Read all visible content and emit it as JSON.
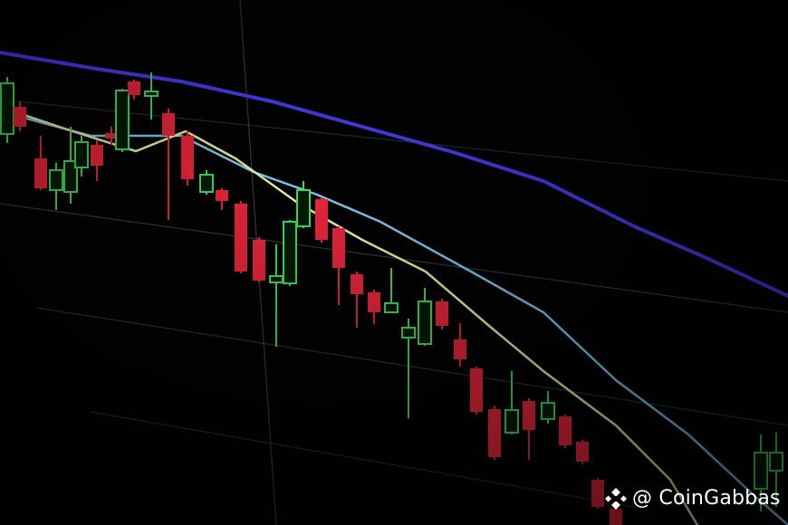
{
  "watermark": {
    "text": "@ CoinGabbas",
    "logo": "binance-diamond-logo"
  },
  "colors": {
    "bullish": "#3ddc5a",
    "bearish": "#e8263a",
    "ma_slow": "#4a3cf0",
    "ma_mid": "#7ec8f0",
    "ma_fast": "#e8f0a0"
  }
}
